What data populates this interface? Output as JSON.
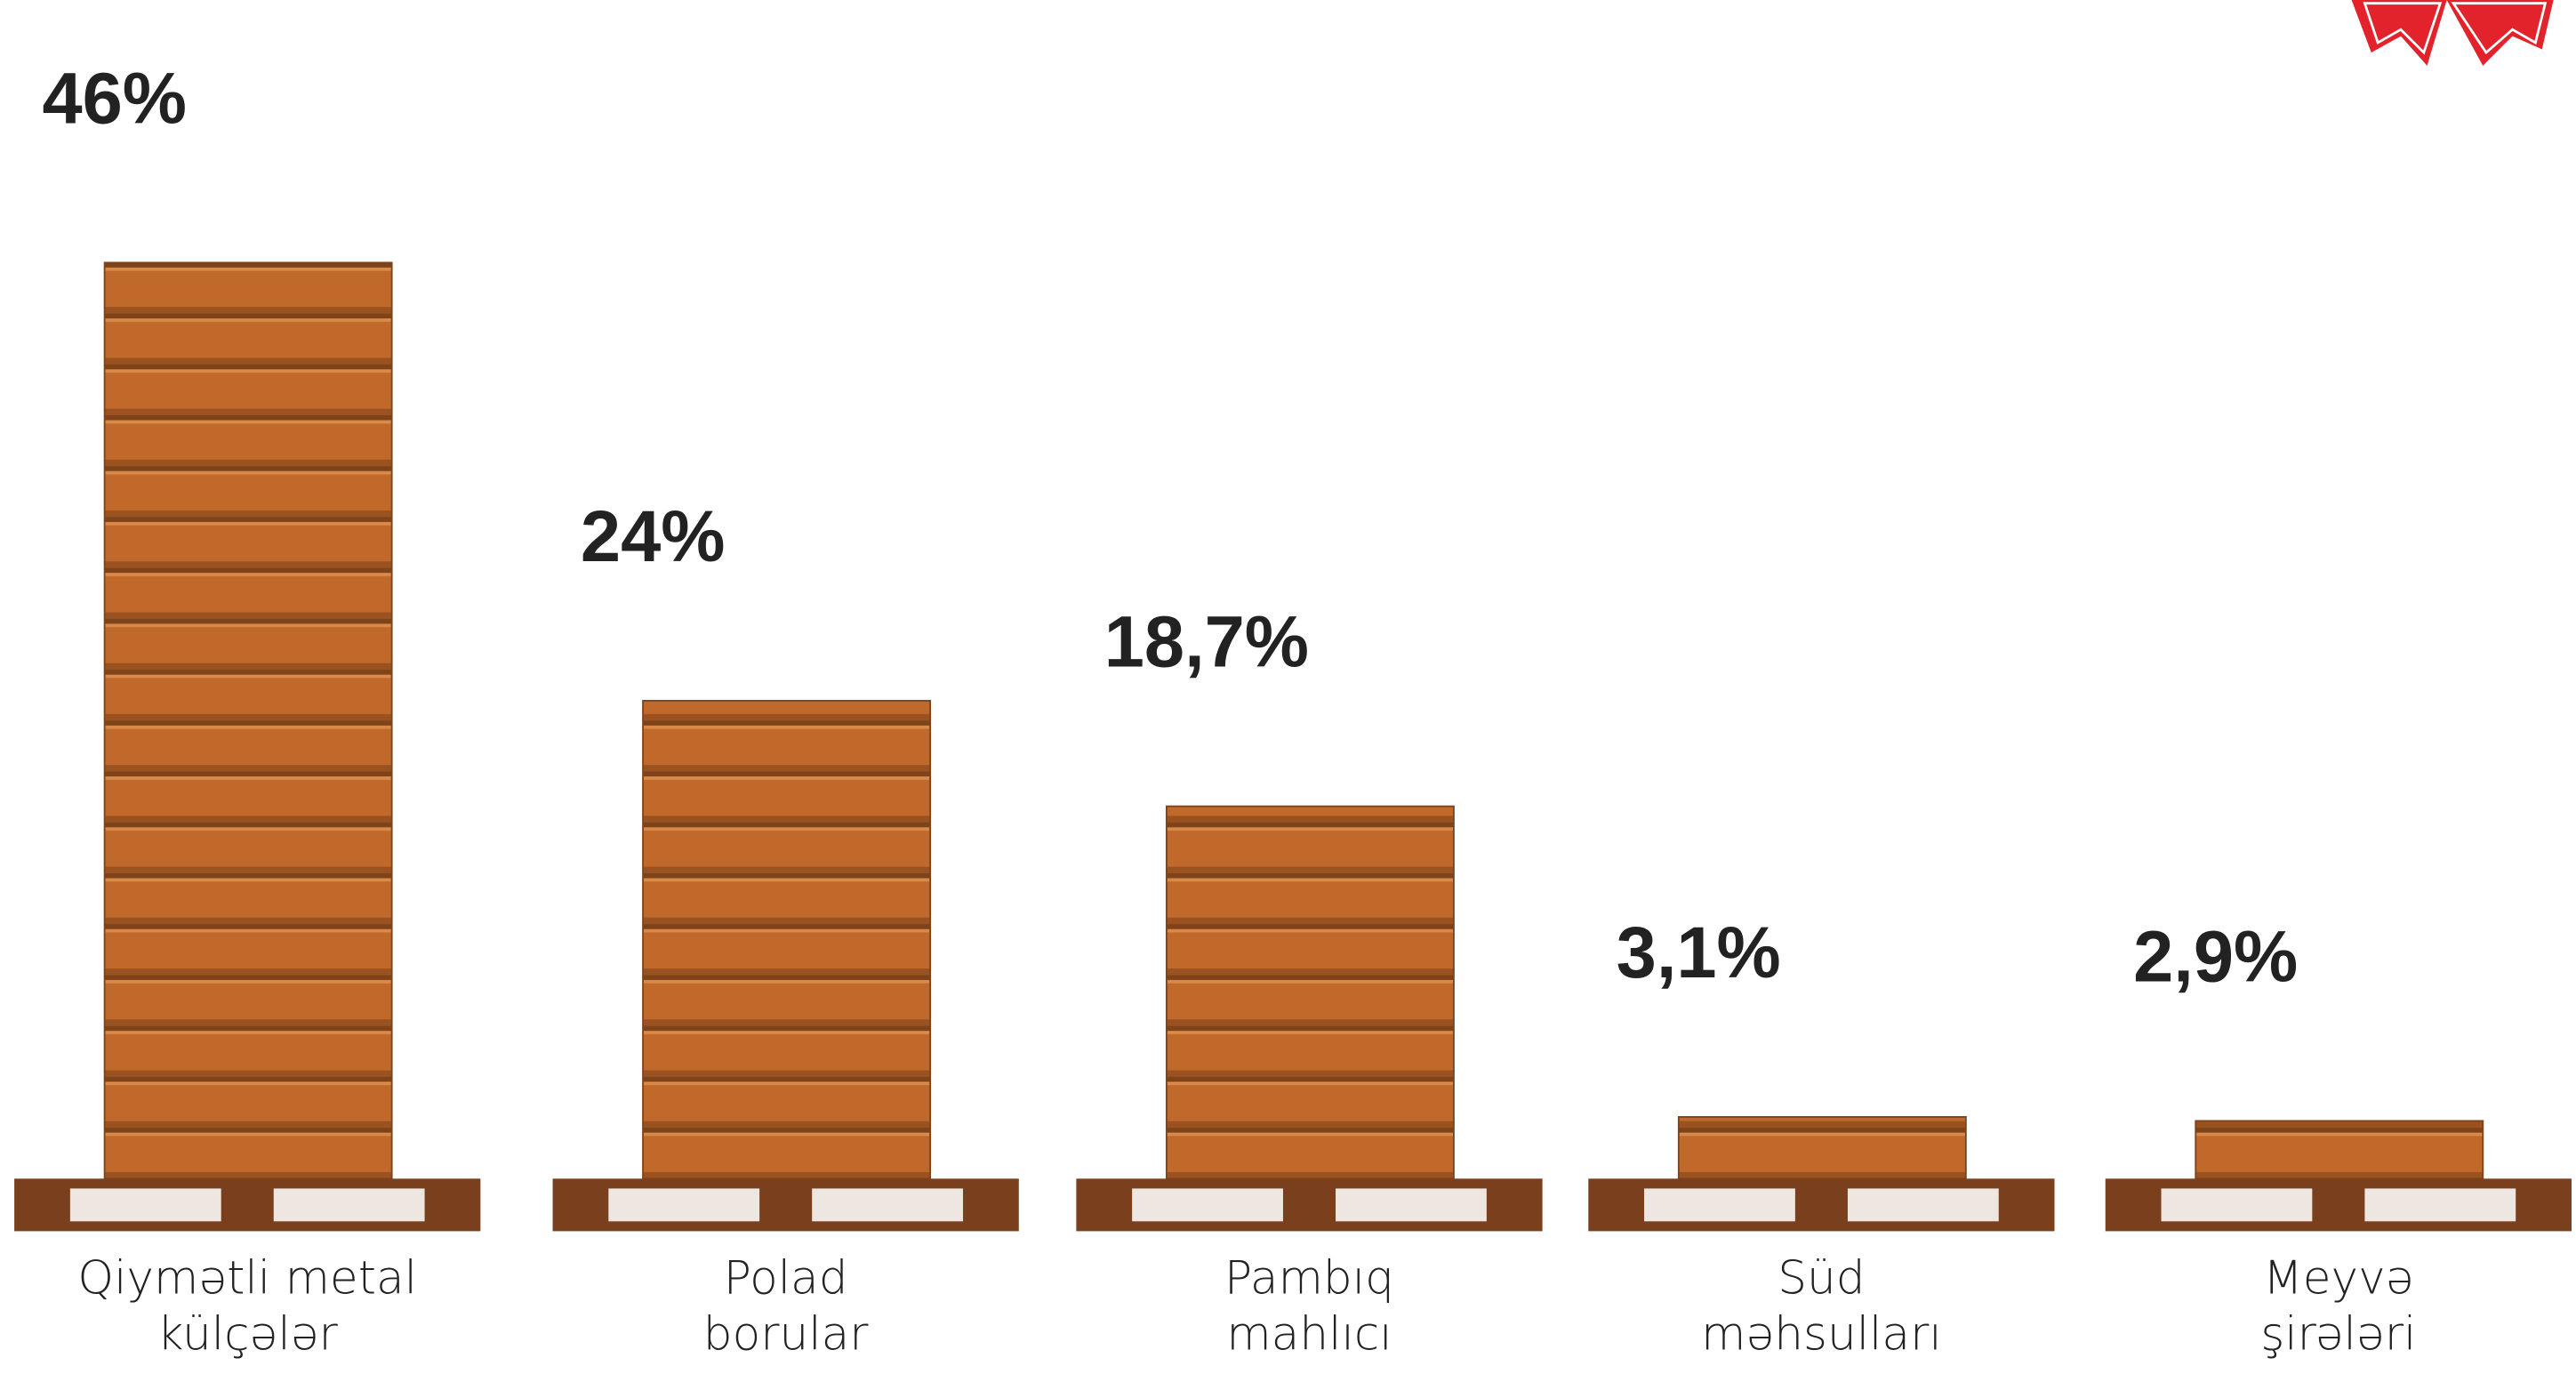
{
  "chart_data": {
    "type": "bar",
    "categories": [
      "Qiymətli metal\nkülçələr",
      "Polad\nborular",
      "Pambıq\nmahlıcı",
      "Süd\nməhsulları",
      "Meyvə\nşirələri"
    ],
    "values": [
      46,
      24,
      18.7,
      3.1,
      2.9
    ],
    "value_labels": [
      "46%",
      "24%",
      "18,7%",
      "3,1%",
      "2,9%"
    ],
    "color": "#c0692b"
  }
}
